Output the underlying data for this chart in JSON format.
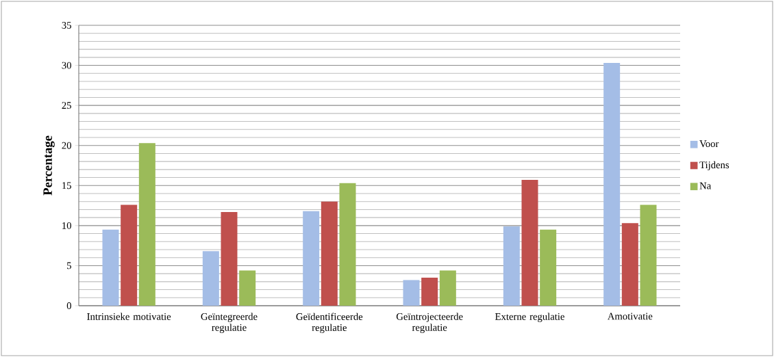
{
  "chart_data": {
    "type": "bar",
    "ylabel": "Percentage",
    "categories": [
      "Intrinsieke motivatie",
      "Geïntegreerde regulatie",
      "Geïdentificeerde regulatie",
      "Geïntrojecteerde regulatie",
      "Externe regulatie",
      "Amotivatie"
    ],
    "series": [
      {
        "name": "Voor",
        "color": "#a4bde6",
        "values": [
          9.5,
          6.8,
          11.8,
          3.2,
          9.9,
          30.3
        ]
      },
      {
        "name": "Tijdens",
        "color": "#c0504d",
        "values": [
          12.6,
          11.7,
          13.0,
          3.5,
          15.7,
          10.3
        ]
      },
      {
        "name": "Na",
        "color": "#9bbb59",
        "values": [
          20.3,
          4.4,
          15.3,
          4.4,
          9.5,
          12.6
        ]
      }
    ],
    "ylim": [
      0,
      35
    ],
    "yticks": [
      0,
      {
        "value": 1,
        "label": null
      },
      {
        "value": 2,
        "label": null
      },
      {
        "value": 3,
        "label": null
      },
      {
        "value": 4,
        "label": null
      },
      5,
      {
        "value": 6,
        "label": null
      },
      {
        "value": 7,
        "label": null
      },
      {
        "value": 8,
        "label": null
      },
      {
        "value": 9,
        "label": null
      },
      10,
      {
        "value": 11,
        "label": null
      },
      {
        "value": 12,
        "label": null
      },
      {
        "value": 13,
        "label": null
      },
      {
        "value": 14,
        "label": null
      },
      15,
      {
        "value": 16,
        "label": null
      },
      {
        "value": 17,
        "label": null
      },
      {
        "value": 18,
        "label": null
      },
      {
        "value": 19,
        "label": null
      },
      20,
      {
        "value": 21,
        "label": null
      },
      {
        "value": 22,
        "label": null
      },
      {
        "value": 23,
        "label": null
      },
      {
        "value": 24,
        "label": null
      },
      25,
      {
        "value": 26,
        "label": null
      },
      {
        "value": 27,
        "label": null
      },
      {
        "value": 28,
        "label": null
      },
      {
        "value": 29,
        "label": null
      },
      30,
      {
        "value": 31,
        "label": null
      },
      {
        "value": 32,
        "label": null
      },
      {
        "value": 33,
        "label": null
      },
      {
        "value": 34,
        "label": null
      },
      35
    ],
    "grid": "y",
    "legend": "right"
  }
}
